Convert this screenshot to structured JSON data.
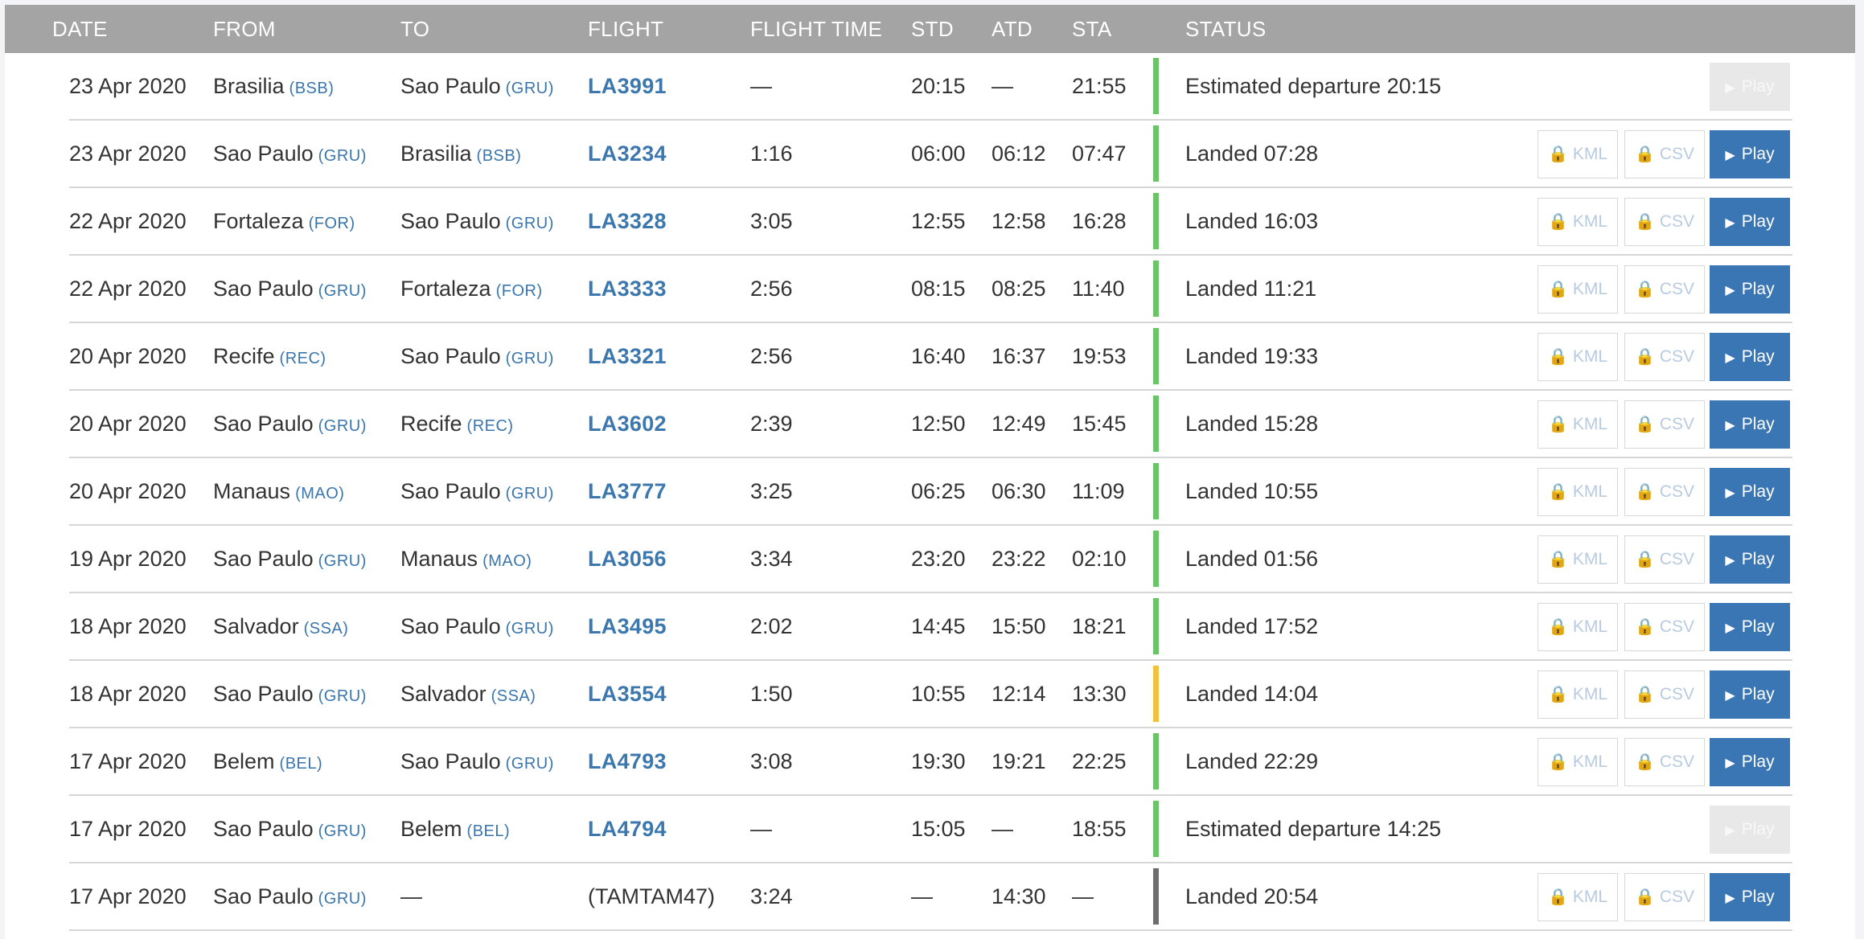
{
  "columns": {
    "date": "DATE",
    "from": "FROM",
    "to": "TO",
    "flight": "FLIGHT",
    "flight_time": "FLIGHT TIME",
    "std": "STD",
    "atd": "ATD",
    "sta": "STA",
    "status": "STATUS"
  },
  "buttons": {
    "kml": "KML",
    "csv": "CSV",
    "play": "Play",
    "lock_icon": "lock-icon",
    "play_icon": "play-icon"
  },
  "colors": {
    "header_bg": "#a4a4a4",
    "link": "#3a76ad",
    "status_on_time": "#6cc46a",
    "status_delayed": "#f0c040",
    "status_unknown": "#6e6e6e",
    "play_button": "#3a76b4"
  },
  "rows": [
    {
      "date": "23 Apr 2020",
      "from": "Brasilia",
      "from_code": "(BSB)",
      "to": "Sao Paulo",
      "to_code": "(GRU)",
      "flight": "LA3991",
      "flight_time": "—",
      "std": "20:15",
      "atd": "—",
      "sta": "21:55",
      "status_color": "green",
      "status": "Estimated departure 20:15",
      "downloads": false,
      "play_enabled": false
    },
    {
      "date": "23 Apr 2020",
      "from": "Sao Paulo",
      "from_code": "(GRU)",
      "to": "Brasilia",
      "to_code": "(BSB)",
      "flight": "LA3234",
      "flight_time": "1:16",
      "std": "06:00",
      "atd": "06:12",
      "sta": "07:47",
      "status_color": "green",
      "status": "Landed 07:28",
      "downloads": true,
      "play_enabled": true
    },
    {
      "date": "22 Apr 2020",
      "from": "Fortaleza",
      "from_code": "(FOR)",
      "to": "Sao Paulo",
      "to_code": "(GRU)",
      "flight": "LA3328",
      "flight_time": "3:05",
      "std": "12:55",
      "atd": "12:58",
      "sta": "16:28",
      "status_color": "green",
      "status": "Landed 16:03",
      "downloads": true,
      "play_enabled": true
    },
    {
      "date": "22 Apr 2020",
      "from": "Sao Paulo",
      "from_code": "(GRU)",
      "to": "Fortaleza",
      "to_code": "(FOR)",
      "flight": "LA3333",
      "flight_time": "2:56",
      "std": "08:15",
      "atd": "08:25",
      "sta": "11:40",
      "status_color": "green",
      "status": "Landed 11:21",
      "downloads": true,
      "play_enabled": true
    },
    {
      "date": "20 Apr 2020",
      "from": "Recife",
      "from_code": "(REC)",
      "to": "Sao Paulo",
      "to_code": "(GRU)",
      "flight": "LA3321",
      "flight_time": "2:56",
      "std": "16:40",
      "atd": "16:37",
      "sta": "19:53",
      "status_color": "green",
      "status": "Landed 19:33",
      "downloads": true,
      "play_enabled": true
    },
    {
      "date": "20 Apr 2020",
      "from": "Sao Paulo",
      "from_code": "(GRU)",
      "to": "Recife",
      "to_code": "(REC)",
      "flight": "LA3602",
      "flight_time": "2:39",
      "std": "12:50",
      "atd": "12:49",
      "sta": "15:45",
      "status_color": "green",
      "status": "Landed 15:28",
      "downloads": true,
      "play_enabled": true
    },
    {
      "date": "20 Apr 2020",
      "from": "Manaus",
      "from_code": "(MAO)",
      "to": "Sao Paulo",
      "to_code": "(GRU)",
      "flight": "LA3777",
      "flight_time": "3:25",
      "std": "06:25",
      "atd": "06:30",
      "sta": "11:09",
      "status_color": "green",
      "status": "Landed 10:55",
      "downloads": true,
      "play_enabled": true
    },
    {
      "date": "19 Apr 2020",
      "from": "Sao Paulo",
      "from_code": "(GRU)",
      "to": "Manaus",
      "to_code": "(MAO)",
      "flight": "LA3056",
      "flight_time": "3:34",
      "std": "23:20",
      "atd": "23:22",
      "sta": "02:10",
      "status_color": "green",
      "status": "Landed 01:56",
      "downloads": true,
      "play_enabled": true
    },
    {
      "date": "18 Apr 2020",
      "from": "Salvador",
      "from_code": "(SSA)",
      "to": "Sao Paulo",
      "to_code": "(GRU)",
      "flight": "LA3495",
      "flight_time": "2:02",
      "std": "14:45",
      "atd": "15:50",
      "sta": "18:21",
      "status_color": "green",
      "status": "Landed 17:52",
      "downloads": true,
      "play_enabled": true
    },
    {
      "date": "18 Apr 2020",
      "from": "Sao Paulo",
      "from_code": "(GRU)",
      "to": "Salvador",
      "to_code": "(SSA)",
      "flight": "LA3554",
      "flight_time": "1:50",
      "std": "10:55",
      "atd": "12:14",
      "sta": "13:30",
      "status_color": "yellow",
      "status": "Landed 14:04",
      "downloads": true,
      "play_enabled": true
    },
    {
      "date": "17 Apr 2020",
      "from": "Belem",
      "from_code": "(BEL)",
      "to": "Sao Paulo",
      "to_code": "(GRU)",
      "flight": "LA4793",
      "flight_time": "3:08",
      "std": "19:30",
      "atd": "19:21",
      "sta": "22:25",
      "status_color": "green",
      "status": "Landed 22:29",
      "downloads": true,
      "play_enabled": true
    },
    {
      "date": "17 Apr 2020",
      "from": "Sao Paulo",
      "from_code": "(GRU)",
      "to": "Belem",
      "to_code": "(BEL)",
      "flight": "LA4794",
      "flight_time": "—",
      "std": "15:05",
      "atd": "—",
      "sta": "18:55",
      "status_color": "green",
      "status": "Estimated departure 14:25",
      "downloads": false,
      "play_enabled": false
    },
    {
      "date": "17 Apr 2020",
      "from": "Sao Paulo",
      "from_code": "(GRU)",
      "to": "—",
      "to_code": "",
      "flight": "(TAMTAM47)",
      "flight_is_link": false,
      "flight_time": "3:24",
      "std": "—",
      "atd": "14:30",
      "sta": "—",
      "status_color": "gray",
      "status": "Landed 20:54",
      "downloads": true,
      "play_enabled": true
    }
  ]
}
